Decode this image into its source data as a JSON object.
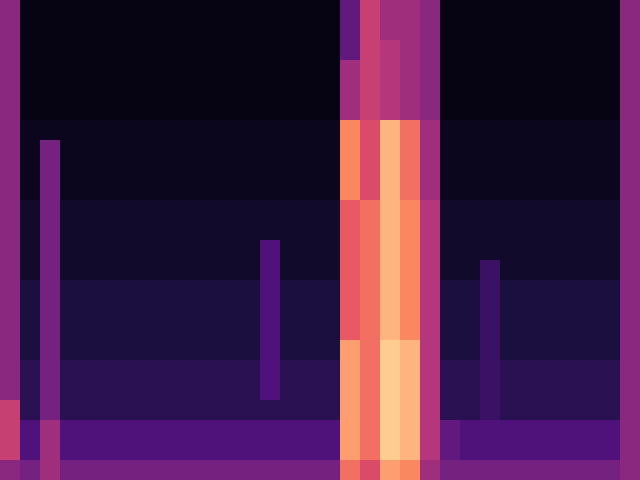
{
  "chart_data": {
    "type": "heatmap",
    "tick_labels": false,
    "zlim": [
      0,
      1
    ],
    "cells": [
      [
        0.4,
        0.03,
        0.03,
        0.03,
        0.03,
        0.03,
        0.03,
        0.03,
        0.03,
        0.03,
        0.03,
        0.03,
        0.03,
        0.03,
        0.03,
        0.03,
        0.03,
        0.3,
        0.55,
        0.45,
        0.45,
        0.4,
        0.03,
        0.03,
        0.03,
        0.03,
        0.03,
        0.03,
        0.03,
        0.03,
        0.03,
        0.4
      ],
      [
        0.4,
        0.03,
        0.03,
        0.03,
        0.03,
        0.03,
        0.03,
        0.03,
        0.03,
        0.03,
        0.03,
        0.03,
        0.03,
        0.03,
        0.03,
        0.03,
        0.03,
        0.3,
        0.55,
        0.45,
        0.45,
        0.4,
        0.03,
        0.03,
        0.03,
        0.03,
        0.03,
        0.03,
        0.03,
        0.03,
        0.03,
        0.4
      ],
      [
        0.4,
        0.03,
        0.03,
        0.03,
        0.03,
        0.03,
        0.03,
        0.03,
        0.03,
        0.03,
        0.03,
        0.03,
        0.03,
        0.03,
        0.03,
        0.03,
        0.03,
        0.3,
        0.55,
        0.5,
        0.45,
        0.4,
        0.03,
        0.03,
        0.03,
        0.03,
        0.03,
        0.03,
        0.03,
        0.03,
        0.03,
        0.4
      ],
      [
        0.4,
        0.03,
        0.03,
        0.03,
        0.03,
        0.03,
        0.03,
        0.03,
        0.03,
        0.03,
        0.03,
        0.03,
        0.03,
        0.03,
        0.03,
        0.03,
        0.03,
        0.45,
        0.55,
        0.5,
        0.45,
        0.4,
        0.03,
        0.03,
        0.03,
        0.03,
        0.03,
        0.03,
        0.03,
        0.03,
        0.03,
        0.4
      ],
      [
        0.4,
        0.03,
        0.03,
        0.03,
        0.03,
        0.03,
        0.03,
        0.03,
        0.03,
        0.03,
        0.03,
        0.03,
        0.03,
        0.03,
        0.03,
        0.03,
        0.03,
        0.45,
        0.55,
        0.5,
        0.45,
        0.4,
        0.03,
        0.03,
        0.03,
        0.03,
        0.03,
        0.03,
        0.03,
        0.03,
        0.03,
        0.4
      ],
      [
        0.4,
        0.03,
        0.03,
        0.03,
        0.03,
        0.03,
        0.03,
        0.03,
        0.03,
        0.03,
        0.03,
        0.03,
        0.03,
        0.03,
        0.03,
        0.03,
        0.03,
        0.45,
        0.55,
        0.5,
        0.45,
        0.4,
        0.03,
        0.03,
        0.03,
        0.03,
        0.03,
        0.03,
        0.03,
        0.03,
        0.03,
        0.4
      ],
      [
        0.4,
        0.05,
        0.05,
        0.05,
        0.05,
        0.05,
        0.05,
        0.05,
        0.05,
        0.05,
        0.05,
        0.05,
        0.05,
        0.05,
        0.05,
        0.05,
        0.05,
        0.75,
        0.6,
        0.85,
        0.7,
        0.45,
        0.05,
        0.05,
        0.05,
        0.05,
        0.05,
        0.05,
        0.05,
        0.05,
        0.05,
        0.4
      ],
      [
        0.4,
        0.05,
        0.35,
        0.05,
        0.05,
        0.05,
        0.05,
        0.05,
        0.05,
        0.05,
        0.05,
        0.05,
        0.05,
        0.05,
        0.05,
        0.05,
        0.05,
        0.75,
        0.6,
        0.85,
        0.7,
        0.45,
        0.05,
        0.05,
        0.05,
        0.05,
        0.05,
        0.05,
        0.05,
        0.05,
        0.05,
        0.4
      ],
      [
        0.4,
        0.05,
        0.35,
        0.05,
        0.05,
        0.05,
        0.05,
        0.05,
        0.05,
        0.05,
        0.05,
        0.05,
        0.05,
        0.05,
        0.05,
        0.05,
        0.05,
        0.75,
        0.6,
        0.85,
        0.7,
        0.45,
        0.05,
        0.05,
        0.05,
        0.05,
        0.05,
        0.05,
        0.05,
        0.05,
        0.05,
        0.4
      ],
      [
        0.4,
        0.05,
        0.35,
        0.05,
        0.05,
        0.05,
        0.05,
        0.05,
        0.05,
        0.05,
        0.05,
        0.05,
        0.05,
        0.05,
        0.05,
        0.05,
        0.05,
        0.75,
        0.6,
        0.85,
        0.7,
        0.45,
        0.05,
        0.05,
        0.05,
        0.05,
        0.05,
        0.05,
        0.05,
        0.05,
        0.05,
        0.4
      ],
      [
        0.4,
        0.08,
        0.35,
        0.08,
        0.08,
        0.08,
        0.08,
        0.08,
        0.08,
        0.08,
        0.08,
        0.08,
        0.08,
        0.08,
        0.08,
        0.08,
        0.08,
        0.65,
        0.7,
        0.85,
        0.75,
        0.5,
        0.08,
        0.08,
        0.08,
        0.08,
        0.08,
        0.08,
        0.08,
        0.08,
        0.08,
        0.4
      ],
      [
        0.4,
        0.08,
        0.35,
        0.08,
        0.08,
        0.08,
        0.08,
        0.08,
        0.08,
        0.08,
        0.08,
        0.08,
        0.08,
        0.08,
        0.08,
        0.08,
        0.08,
        0.65,
        0.7,
        0.85,
        0.75,
        0.5,
        0.08,
        0.08,
        0.08,
        0.08,
        0.08,
        0.08,
        0.08,
        0.08,
        0.08,
        0.4
      ],
      [
        0.4,
        0.08,
        0.35,
        0.08,
        0.08,
        0.08,
        0.08,
        0.08,
        0.08,
        0.08,
        0.08,
        0.08,
        0.08,
        0.25,
        0.08,
        0.08,
        0.08,
        0.65,
        0.7,
        0.85,
        0.75,
        0.5,
        0.08,
        0.08,
        0.08,
        0.08,
        0.08,
        0.08,
        0.08,
        0.08,
        0.08,
        0.4
      ],
      [
        0.4,
        0.08,
        0.35,
        0.08,
        0.08,
        0.08,
        0.08,
        0.08,
        0.08,
        0.08,
        0.08,
        0.08,
        0.08,
        0.25,
        0.08,
        0.08,
        0.08,
        0.65,
        0.7,
        0.85,
        0.75,
        0.5,
        0.08,
        0.08,
        0.2,
        0.08,
        0.08,
        0.08,
        0.08,
        0.08,
        0.08,
        0.4
      ],
      [
        0.4,
        0.12,
        0.35,
        0.12,
        0.12,
        0.12,
        0.12,
        0.12,
        0.12,
        0.12,
        0.12,
        0.12,
        0.12,
        0.25,
        0.12,
        0.12,
        0.12,
        0.65,
        0.7,
        0.85,
        0.75,
        0.5,
        0.12,
        0.12,
        0.2,
        0.12,
        0.12,
        0.12,
        0.12,
        0.12,
        0.12,
        0.4
      ],
      [
        0.4,
        0.12,
        0.35,
        0.12,
        0.12,
        0.12,
        0.12,
        0.12,
        0.12,
        0.12,
        0.12,
        0.12,
        0.12,
        0.25,
        0.12,
        0.12,
        0.12,
        0.65,
        0.7,
        0.85,
        0.75,
        0.5,
        0.12,
        0.12,
        0.2,
        0.12,
        0.12,
        0.12,
        0.12,
        0.12,
        0.12,
        0.4
      ],
      [
        0.4,
        0.12,
        0.35,
        0.12,
        0.12,
        0.12,
        0.12,
        0.12,
        0.12,
        0.12,
        0.12,
        0.12,
        0.12,
        0.25,
        0.12,
        0.12,
        0.12,
        0.65,
        0.7,
        0.85,
        0.75,
        0.5,
        0.12,
        0.12,
        0.2,
        0.12,
        0.12,
        0.12,
        0.12,
        0.12,
        0.12,
        0.4
      ],
      [
        0.4,
        0.12,
        0.35,
        0.12,
        0.12,
        0.12,
        0.12,
        0.12,
        0.12,
        0.12,
        0.12,
        0.12,
        0.12,
        0.25,
        0.12,
        0.12,
        0.12,
        0.8,
        0.7,
        0.9,
        0.85,
        0.5,
        0.12,
        0.12,
        0.2,
        0.12,
        0.12,
        0.12,
        0.12,
        0.12,
        0.12,
        0.4
      ],
      [
        0.4,
        0.16,
        0.35,
        0.16,
        0.16,
        0.16,
        0.16,
        0.16,
        0.16,
        0.16,
        0.16,
        0.16,
        0.16,
        0.25,
        0.16,
        0.16,
        0.16,
        0.8,
        0.7,
        0.9,
        0.85,
        0.5,
        0.16,
        0.16,
        0.2,
        0.16,
        0.16,
        0.16,
        0.16,
        0.16,
        0.16,
        0.4
      ],
      [
        0.4,
        0.16,
        0.35,
        0.16,
        0.16,
        0.16,
        0.16,
        0.16,
        0.16,
        0.16,
        0.16,
        0.16,
        0.16,
        0.25,
        0.16,
        0.16,
        0.16,
        0.8,
        0.7,
        0.9,
        0.85,
        0.5,
        0.16,
        0.16,
        0.2,
        0.16,
        0.16,
        0.16,
        0.16,
        0.16,
        0.16,
        0.4
      ],
      [
        0.55,
        0.16,
        0.35,
        0.16,
        0.16,
        0.16,
        0.16,
        0.16,
        0.16,
        0.16,
        0.16,
        0.16,
        0.16,
        0.16,
        0.16,
        0.16,
        0.16,
        0.8,
        0.7,
        0.9,
        0.85,
        0.5,
        0.16,
        0.16,
        0.2,
        0.16,
        0.16,
        0.16,
        0.16,
        0.16,
        0.16,
        0.4
      ],
      [
        0.55,
        0.25,
        0.45,
        0.25,
        0.25,
        0.25,
        0.25,
        0.25,
        0.25,
        0.25,
        0.25,
        0.25,
        0.25,
        0.25,
        0.25,
        0.25,
        0.25,
        0.8,
        0.7,
        0.9,
        0.85,
        0.5,
        0.3,
        0.25,
        0.25,
        0.25,
        0.25,
        0.25,
        0.25,
        0.25,
        0.25,
        0.4
      ],
      [
        0.55,
        0.25,
        0.45,
        0.25,
        0.25,
        0.25,
        0.25,
        0.25,
        0.25,
        0.25,
        0.25,
        0.25,
        0.25,
        0.25,
        0.25,
        0.25,
        0.25,
        0.8,
        0.7,
        0.9,
        0.85,
        0.5,
        0.3,
        0.25,
        0.25,
        0.25,
        0.25,
        0.25,
        0.25,
        0.25,
        0.25,
        0.4
      ],
      [
        0.4,
        0.35,
        0.45,
        0.35,
        0.35,
        0.35,
        0.35,
        0.35,
        0.35,
        0.35,
        0.35,
        0.35,
        0.35,
        0.35,
        0.35,
        0.35,
        0.35,
        0.7,
        0.6,
        0.8,
        0.75,
        0.45,
        0.35,
        0.35,
        0.35,
        0.35,
        0.35,
        0.35,
        0.35,
        0.35,
        0.35,
        0.4
      ]
    ]
  }
}
